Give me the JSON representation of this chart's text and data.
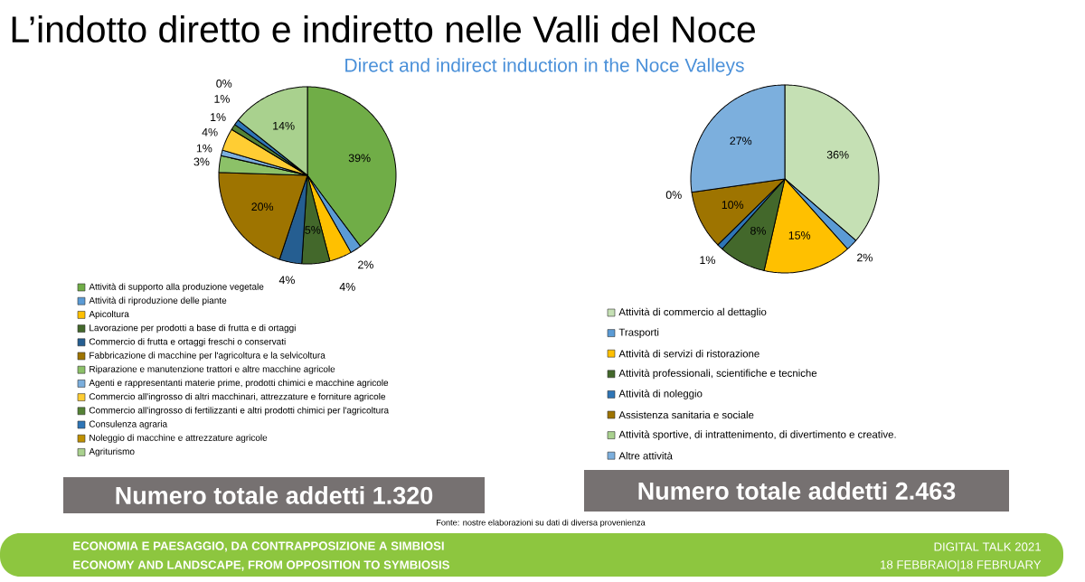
{
  "chart_data": [
    {
      "type": "pie",
      "title": "L’indotto diretto e indiretto nelle Valli del Noce",
      "subtitle": "Direct and indirect induction in the Noce Valleys",
      "categories": [
        "Attività di supporto alla produzione vegetale",
        "Attività di riproduzione delle piante",
        "Apicoltura",
        "Lavorazione per prodotti a base di frutta e di ortaggi",
        "Commercio di frutta e ortaggi freschi o conservati",
        "Fabbricazione di macchine per l'agricoltura e la selvicoltura",
        "Riparazione e manutenzione trattori e altre macchine agricole",
        "Agenti e rappresentanti materie prime, prodotti chimici e macchine agricole",
        "Commercio all'ingrosso di altri macchinari, attrezzature e forniture agricole",
        "Commercio all'ingrosso di fertilizzanti e altri prodotti chimici per l'agricoltura",
        "Consulenza agraria",
        "Noleggio di macchine e attrezzature agricole",
        "Agriturismo"
      ],
      "values": [
        39,
        2,
        4,
        5,
        4,
        20,
        3,
        1,
        4,
        1,
        1,
        0,
        14
      ],
      "value_labels": [
        "39%",
        "2%",
        "4%",
        "5%",
        "4%",
        "20%",
        "3%",
        "1%",
        "4%",
        "1%",
        "1%",
        "0%",
        "14%"
      ],
      "colors": [
        "#70ad47",
        "#5b9bd5",
        "#ffc000",
        "#43682b",
        "#255e91",
        "#9e7400",
        "#8cc168",
        "#7cafdd",
        "#ffcd33",
        "#548235",
        "#2e75b6",
        "#bf9000",
        "#a9d18e"
      ],
      "legend": "bottom",
      "annotations": [
        "Numero totale addetti 1.320"
      ]
    },
    {
      "type": "pie",
      "categories": [
        "Attività di commercio al dettaglio",
        "Trasporti",
        "Attività di servizi di ristorazione",
        "Attività professionali, scientifiche e tecniche",
        "Attività di noleggio",
        "Assistenza sanitaria e sociale",
        "Attività sportive, di intrattenimento, di divertimento e creative.",
        "Altre attività"
      ],
      "values": [
        36,
        2,
        15,
        8,
        1,
        10,
        0,
        27
      ],
      "value_labels": [
        "36%",
        "2%",
        "15%",
        "8%",
        "1%",
        "10%",
        "0%",
        "27%"
      ],
      "colors": [
        "#c5e0b4",
        "#5b9bd5",
        "#ffc000",
        "#43682b",
        "#2e75b6",
        "#9e7400",
        "#a9d18e",
        "#7cafdd"
      ],
      "legend": "bottom",
      "annotations": [
        "Numero totale addetti 2.463",
        "Fonte: nostre elaborazioni su dati di diversa provenienza",
        "ECONOMIA E PAESAGGIO, DA CONTRAPPOSIZIONE A SIMBIOSI",
        "ECONOMY AND LANDSCAPE, FROM OPPOSITION TO SYMBIOSIS",
        "DIGITAL TALK 2021",
        "18 FEBBRAIO|18 FEBRUARY"
      ]
    }
  ]
}
